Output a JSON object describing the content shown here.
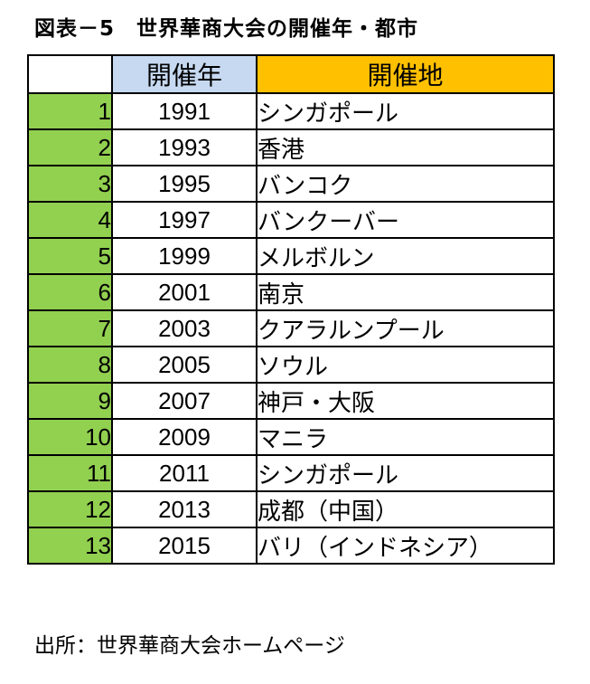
{
  "title": "図表－5　世界華商大会の開催年・都市",
  "source": "出所：世界華商大会ホームページ",
  "colors": {
    "year_header_fill": "#c6d9f1",
    "city_header_fill": "#ffc000",
    "number_fill": "#92d050",
    "border": "#000000"
  },
  "table": {
    "headers": {
      "blank": "",
      "year": "開催年",
      "city": "開催地"
    },
    "rows": [
      {
        "no": "1",
        "year": "1991",
        "city": "シンガポール"
      },
      {
        "no": "2",
        "year": "1993",
        "city": "香港"
      },
      {
        "no": "3",
        "year": "1995",
        "city": "バンコク"
      },
      {
        "no": "4",
        "year": "1997",
        "city": "バンクーバー"
      },
      {
        "no": "5",
        "year": "1999",
        "city": "メルボルン"
      },
      {
        "no": "6",
        "year": "2001",
        "city": "南京"
      },
      {
        "no": "7",
        "year": "2003",
        "city": "クアラルンプール"
      },
      {
        "no": "8",
        "year": "2005",
        "city": "ソウル"
      },
      {
        "no": "9",
        "year": "2007",
        "city": "神戸・大阪"
      },
      {
        "no": "10",
        "year": "2009",
        "city": "マニラ"
      },
      {
        "no": "11",
        "year": "2011",
        "city": "シンガポール"
      },
      {
        "no": "12",
        "year": "2013",
        "city": "成都（中国）"
      },
      {
        "no": "13",
        "year": "2015",
        "city": "バリ（インドネシア）"
      }
    ]
  }
}
